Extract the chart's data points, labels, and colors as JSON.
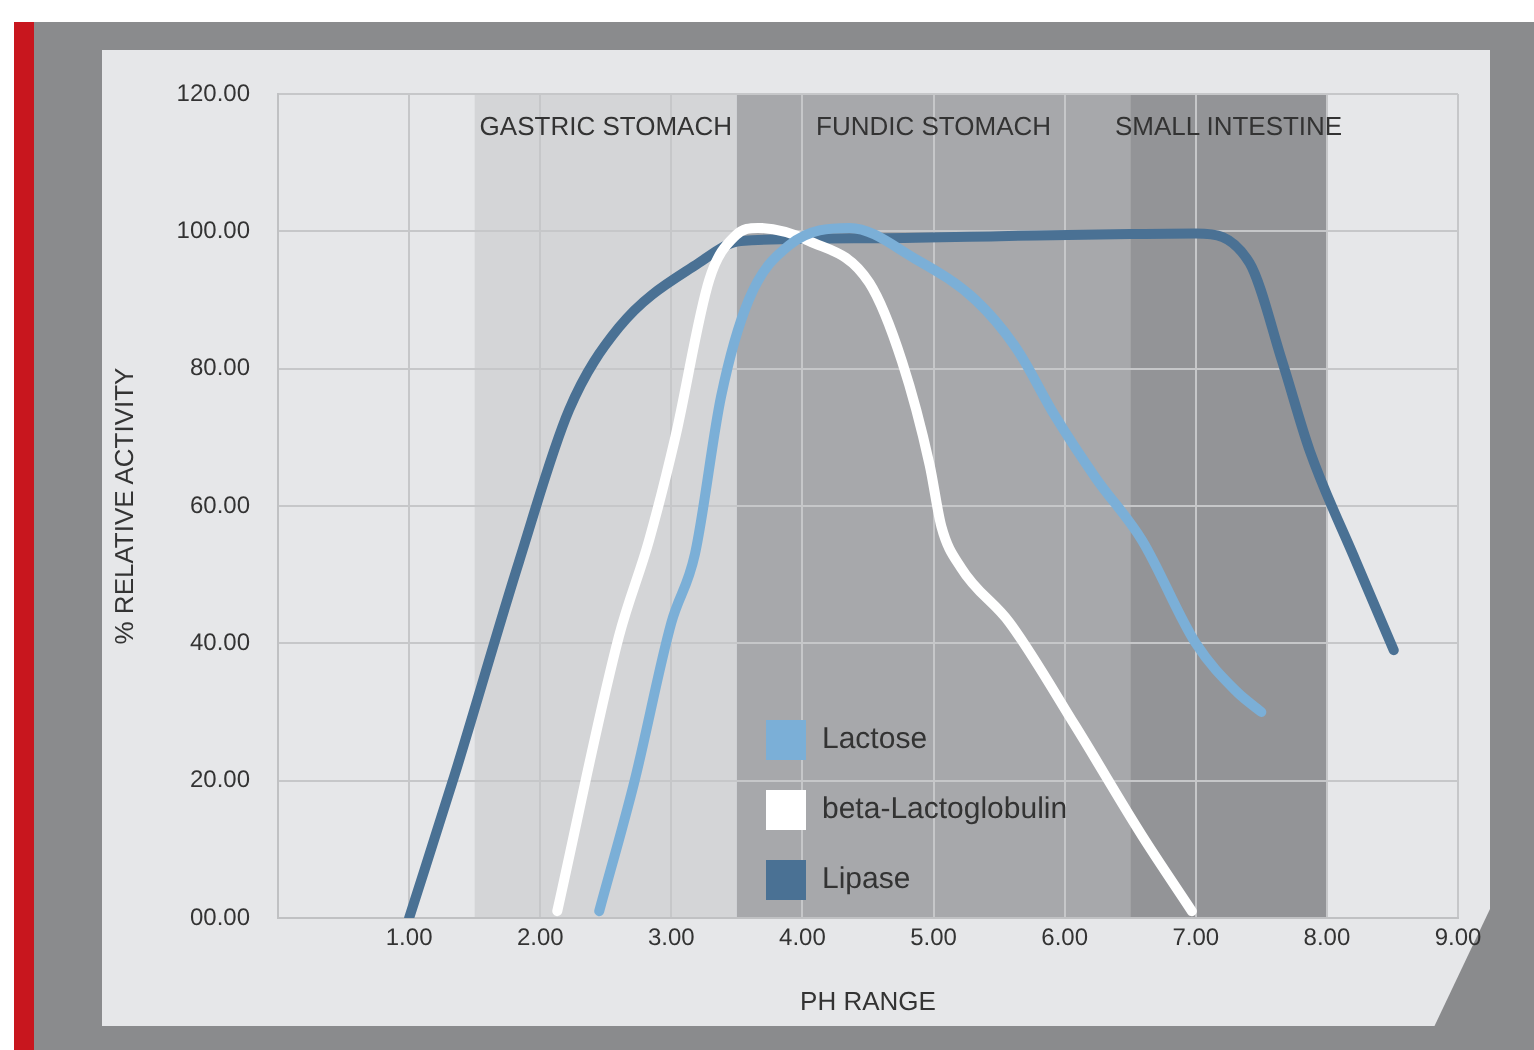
{
  "chart_data": {
    "type": "line",
    "xlabel": "PH RANGE",
    "ylabel": "% RELATIVE ACTIVITY",
    "xlim": [
      0,
      9
    ],
    "xticks": [
      {
        "value": 1,
        "label": "1.00"
      },
      {
        "value": 2,
        "label": "2.00"
      },
      {
        "value": 3,
        "label": "3.00"
      },
      {
        "value": 4,
        "label": "4.00"
      },
      {
        "value": 5,
        "label": "5.00"
      },
      {
        "value": 6,
        "label": "6.00"
      },
      {
        "value": 7,
        "label": "7.00"
      },
      {
        "value": 8,
        "label": "8.00"
      },
      {
        "value": 9,
        "label": "9.00"
      }
    ],
    "ylim": [
      0,
      120
    ],
    "yticks": [
      {
        "value": 0,
        "label": "00.00"
      },
      {
        "value": 20,
        "label": "20.00"
      },
      {
        "value": 40,
        "label": "40.00"
      },
      {
        "value": 60,
        "label": "60.00"
      },
      {
        "value": 80,
        "label": "80.00"
      },
      {
        "value": 100,
        "label": "100.00"
      },
      {
        "value": 120,
        "label": "120.00"
      }
    ],
    "grid": true,
    "legend": "bottom",
    "marker": "none",
    "line_style": "solid",
    "bands": [
      {
        "axis": "x",
        "from": 1.5,
        "to": 3.5,
        "label": "GASTRIC STOMACH",
        "color": "#d4d5d7"
      },
      {
        "axis": "x",
        "from": 3.5,
        "to": 6.5,
        "label": "FUNDIC STOMACH",
        "color": "#a7a8ab"
      },
      {
        "axis": "x",
        "from": 6.5,
        "to": 8,
        "label": "SMALL INTESTINE",
        "color": "#939497"
      }
    ],
    "series": [
      {
        "name": "Lactose",
        "color": "#7bafd7",
        "x": [
          2.45,
          2.72,
          3.0,
          3.18,
          3.38,
          3.59,
          3.9,
          4.36,
          4.86,
          5.32,
          5.63,
          5.93,
          6.24,
          6.59,
          7.0,
          7.31,
          7.5
        ],
        "values": [
          1,
          20,
          43,
          53,
          76,
          90,
          98,
          100.5,
          96,
          90,
          83,
          73,
          64,
          55,
          40,
          33,
          30
        ]
      },
      {
        "name": "beta-Lactoglobulin",
        "color": "#ffffff",
        "x": [
          2.13,
          2.6,
          2.83,
          3.03,
          3.29,
          3.49,
          3.66,
          4.05,
          4.51,
          4.76,
          4.97,
          5.06,
          5.21,
          5.58,
          6.08,
          6.59,
          6.97
        ],
        "values": [
          1,
          41,
          55,
          70,
          93,
          99.4,
          100.5,
          98.6,
          92.5,
          81,
          66,
          57,
          51,
          43,
          28,
          12,
          1
        ]
      },
      {
        "name": "Lipase",
        "color": "#4a7194",
        "x": [
          1.0,
          1.35,
          1.84,
          2.22,
          2.6,
          3.21,
          3.53,
          4.5,
          5.5,
          6.5,
          7.0,
          7.41,
          7.66,
          7.87,
          8.22,
          8.51
        ],
        "values": [
          0,
          21,
          52,
          74,
          86,
          95.4,
          98.6,
          99,
          99.3,
          99.6,
          99.7,
          95.4,
          81,
          68,
          52,
          39
        ]
      }
    ]
  }
}
